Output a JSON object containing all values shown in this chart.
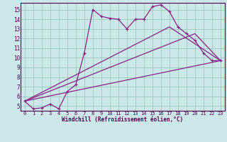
{
  "xlabel": "Windchill (Refroidissement éolien,°C)",
  "xlim": [
    -0.5,
    23.5
  ],
  "ylim": [
    4.5,
    15.7
  ],
  "yticks": [
    5,
    6,
    7,
    8,
    9,
    10,
    11,
    12,
    13,
    14,
    15
  ],
  "xticks": [
    0,
    1,
    2,
    3,
    4,
    5,
    6,
    7,
    8,
    9,
    10,
    11,
    12,
    13,
    14,
    15,
    16,
    17,
    18,
    19,
    20,
    21,
    22,
    23
  ],
  "bg_color": "#cde8e8",
  "line_color": "#882288",
  "grid_color": "#99ccbb",
  "line1_x": [
    0,
    1,
    2,
    3,
    4,
    5,
    6,
    7,
    8,
    9,
    10,
    11,
    12,
    13,
    14,
    15,
    16,
    17,
    18,
    19,
    20,
    21,
    22,
    23
  ],
  "line1_y": [
    5.5,
    4.7,
    4.8,
    5.2,
    4.7,
    6.5,
    7.2,
    10.5,
    15.0,
    14.3,
    14.1,
    14.0,
    13.0,
    14.0,
    14.0,
    15.3,
    15.5,
    14.8,
    13.2,
    12.5,
    11.8,
    10.5,
    9.7,
    9.7
  ],
  "line2_x": [
    0,
    23
  ],
  "line2_y": [
    5.5,
    9.7
  ],
  "line3_x": [
    0,
    20,
    23
  ],
  "line3_y": [
    5.5,
    12.5,
    9.7
  ],
  "line4_x": [
    0,
    17,
    23
  ],
  "line4_y": [
    5.5,
    13.2,
    9.7
  ]
}
